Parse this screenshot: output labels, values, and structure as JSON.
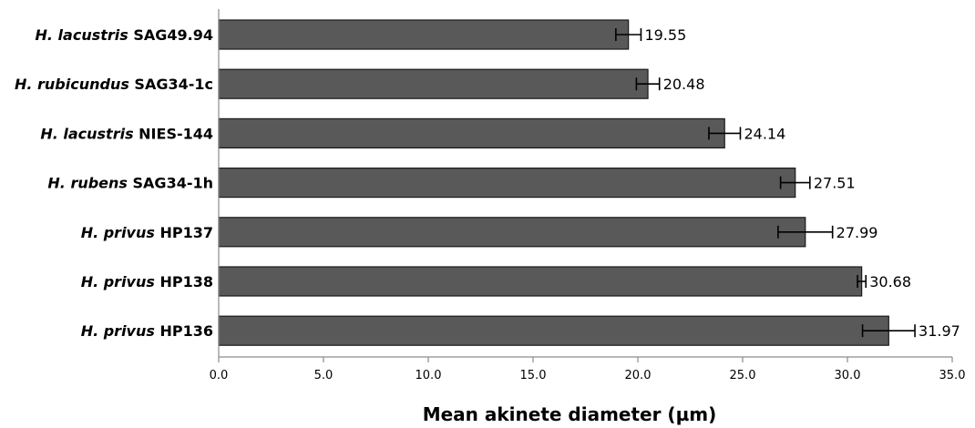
{
  "chart_data": {
    "type": "bar",
    "orientation": "horizontal",
    "categories": [
      {
        "italic": "H. lacustris",
        "strain": "SAG49.94"
      },
      {
        "italic": "H. rubicundus",
        "strain": "SAG34-1c"
      },
      {
        "italic": "H. lacustris",
        "strain": "NIES-144"
      },
      {
        "italic": "H. rubens",
        "strain": "SAG34-1h"
      },
      {
        "italic": "H. privus",
        "strain": "HP137"
      },
      {
        "italic": "H. privus",
        "strain": "HP138"
      },
      {
        "italic": "H. privus",
        "strain": "HP136"
      }
    ],
    "values": [
      19.55,
      20.48,
      24.14,
      27.51,
      27.99,
      30.68,
      31.97
    ],
    "value_labels": [
      "19.55",
      "20.48",
      "24.14",
      "27.51",
      "27.99",
      "30.68",
      "31.97"
    ],
    "errors": [
      0.6,
      0.55,
      0.75,
      0.7,
      1.3,
      0.2,
      1.25
    ],
    "xlabel": "Mean akinete diameter (µm)",
    "xlim": [
      0,
      35
    ],
    "xticks": [
      "0.0",
      "5.0",
      "10.0",
      "15.0",
      "20.0",
      "25.0",
      "30.0",
      "35.0"
    ],
    "grid": false,
    "bar_color": "#595959",
    "bar_edge_color": "#1a1a1a"
  }
}
